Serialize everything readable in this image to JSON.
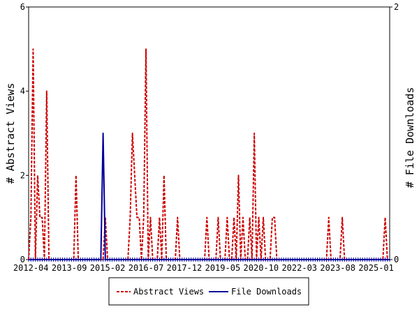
{
  "chart_data": {
    "type": "line",
    "ylabel_left": "# Abstract Views",
    "ylabel_right": "# File Downloads",
    "x_tick_labels": [
      "2012-04",
      "2013-09",
      "2015-02",
      "2016-07",
      "2017-12",
      "2019-05",
      "2020-10",
      "2022-03",
      "2023-08",
      "2025-01"
    ],
    "x_range": [
      "2012-03",
      "2025-07"
    ],
    "y_left": {
      "ylim": [
        0,
        6
      ],
      "ticks": [
        "0",
        "2",
        "4",
        "6"
      ]
    },
    "y_right": {
      "ylim": [
        0,
        2
      ],
      "ticks": [
        "0",
        "2"
      ]
    },
    "grid": false,
    "legend_position": "bottom-center",
    "series": [
      {
        "name": "Abstract Views",
        "axis": "left",
        "color": "#cc0000",
        "style": "dashed",
        "points": [
          [
            "2012-03",
            0
          ],
          [
            "2012-04",
            1
          ],
          [
            "2012-05",
            5
          ],
          [
            "2012-06",
            0
          ],
          [
            "2012-07",
            2
          ],
          [
            "2012-08",
            1
          ],
          [
            "2012-09",
            1
          ],
          [
            "2012-10",
            0
          ],
          [
            "2012-11",
            4
          ],
          [
            "2012-12",
            0
          ],
          [
            "2013-01",
            0
          ],
          [
            "2013-02",
            0
          ],
          [
            "2013-03",
            0
          ],
          [
            "2013-04",
            0
          ],
          [
            "2013-05",
            0
          ],
          [
            "2013-06",
            0
          ],
          [
            "2013-07",
            0
          ],
          [
            "2013-08",
            0
          ],
          [
            "2013-09",
            0
          ],
          [
            "2013-10",
            0
          ],
          [
            "2013-11",
            0
          ],
          [
            "2013-12",
            2
          ],
          [
            "2014-01",
            0
          ],
          [
            "2014-02",
            0
          ],
          [
            "2014-03",
            0
          ],
          [
            "2014-04",
            0
          ],
          [
            "2014-05",
            0
          ],
          [
            "2014-06",
            0
          ],
          [
            "2014-07",
            0
          ],
          [
            "2014-08",
            0
          ],
          [
            "2014-09",
            0
          ],
          [
            "2014-10",
            0
          ],
          [
            "2014-11",
            0
          ],
          [
            "2014-12",
            0
          ],
          [
            "2015-01",
            1
          ],
          [
            "2015-02",
            0
          ],
          [
            "2015-03",
            0
          ],
          [
            "2015-04",
            0
          ],
          [
            "2015-05",
            0
          ],
          [
            "2015-06",
            0
          ],
          [
            "2015-07",
            0
          ],
          [
            "2015-08",
            0
          ],
          [
            "2015-09",
            0
          ],
          [
            "2015-10",
            0
          ],
          [
            "2015-11",
            0
          ],
          [
            "2015-12",
            1
          ],
          [
            "2016-01",
            3
          ],
          [
            "2016-02",
            2
          ],
          [
            "2016-03",
            1
          ],
          [
            "2016-04",
            1
          ],
          [
            "2016-05",
            0
          ],
          [
            "2016-06",
            1
          ],
          [
            "2016-07",
            5
          ],
          [
            "2016-08",
            0
          ],
          [
            "2016-09",
            1
          ],
          [
            "2016-10",
            0
          ],
          [
            "2016-11",
            0
          ],
          [
            "2016-12",
            0
          ],
          [
            "2017-01",
            1
          ],
          [
            "2017-02",
            0
          ],
          [
            "2017-03",
            2
          ],
          [
            "2017-04",
            0
          ],
          [
            "2017-05",
            0
          ],
          [
            "2017-06",
            0
          ],
          [
            "2017-07",
            0
          ],
          [
            "2017-08",
            0
          ],
          [
            "2017-09",
            1
          ],
          [
            "2017-10",
            0
          ],
          [
            "2017-11",
            0
          ],
          [
            "2017-12",
            0
          ],
          [
            "2018-01",
            0
          ],
          [
            "2018-02",
            0
          ],
          [
            "2018-03",
            0
          ],
          [
            "2018-04",
            0
          ],
          [
            "2018-05",
            0
          ],
          [
            "2018-06",
            0
          ],
          [
            "2018-07",
            0
          ],
          [
            "2018-08",
            0
          ],
          [
            "2018-09",
            0
          ],
          [
            "2018-10",
            1
          ],
          [
            "2018-11",
            0
          ],
          [
            "2018-12",
            0
          ],
          [
            "2019-01",
            0
          ],
          [
            "2019-02",
            0
          ],
          [
            "2019-03",
            1
          ],
          [
            "2019-04",
            0
          ],
          [
            "2019-05",
            0
          ],
          [
            "2019-06",
            0
          ],
          [
            "2019-07",
            1
          ],
          [
            "2019-08",
            0
          ],
          [
            "2019-09",
            0
          ],
          [
            "2019-10",
            1
          ],
          [
            "2019-11",
            0
          ],
          [
            "2019-12",
            2
          ],
          [
            "2020-01",
            0
          ],
          [
            "2020-02",
            1
          ],
          [
            "2020-03",
            0
          ],
          [
            "2020-04",
            0
          ],
          [
            "2020-05",
            1
          ],
          [
            "2020-06",
            0
          ],
          [
            "2020-07",
            3
          ],
          [
            "2020-08",
            0
          ],
          [
            "2020-09",
            1
          ],
          [
            "2020-10",
            0
          ],
          [
            "2020-11",
            1
          ],
          [
            "2020-12",
            0
          ],
          [
            "2021-01",
            0
          ],
          [
            "2021-02",
            0
          ],
          [
            "2021-03",
            1
          ],
          [
            "2021-04",
            1
          ],
          [
            "2021-05",
            0
          ],
          [
            "2021-06",
            0
          ],
          [
            "2021-07",
            0
          ],
          [
            "2021-08",
            0
          ],
          [
            "2021-09",
            0
          ],
          [
            "2021-10",
            0
          ],
          [
            "2021-11",
            0
          ],
          [
            "2021-12",
            0
          ],
          [
            "2022-01",
            0
          ],
          [
            "2022-02",
            0
          ],
          [
            "2022-03",
            0
          ],
          [
            "2022-04",
            0
          ],
          [
            "2022-05",
            0
          ],
          [
            "2022-06",
            0
          ],
          [
            "2022-07",
            0
          ],
          [
            "2022-08",
            0
          ],
          [
            "2022-09",
            0
          ],
          [
            "2022-10",
            0
          ],
          [
            "2022-11",
            0
          ],
          [
            "2022-12",
            0
          ],
          [
            "2023-01",
            0
          ],
          [
            "2023-02",
            0
          ],
          [
            "2023-03",
            0
          ],
          [
            "2023-04",
            1
          ],
          [
            "2023-05",
            0
          ],
          [
            "2023-06",
            0
          ],
          [
            "2023-07",
            0
          ],
          [
            "2023-08",
            0
          ],
          [
            "2023-09",
            0
          ],
          [
            "2023-10",
            1
          ],
          [
            "2023-11",
            0
          ],
          [
            "2023-12",
            0
          ],
          [
            "2024-01",
            0
          ],
          [
            "2024-02",
            0
          ],
          [
            "2024-03",
            0
          ],
          [
            "2024-04",
            0
          ],
          [
            "2024-05",
            0
          ],
          [
            "2024-06",
            0
          ],
          [
            "2024-07",
            0
          ],
          [
            "2024-08",
            0
          ],
          [
            "2024-09",
            0
          ],
          [
            "2024-10",
            0
          ],
          [
            "2024-11",
            0
          ],
          [
            "2024-12",
            0
          ],
          [
            "2025-01",
            0
          ],
          [
            "2025-02",
            0
          ],
          [
            "2025-03",
            0
          ],
          [
            "2025-04",
            0
          ],
          [
            "2025-05",
            1
          ],
          [
            "2025-06",
            0
          ],
          [
            "2025-07",
            0
          ]
        ]
      },
      {
        "name": "File Downloads",
        "axis": "right",
        "color": "#000099",
        "style": "solid",
        "points": [
          [
            "2012-03",
            0
          ],
          [
            "2014-11",
            0
          ],
          [
            "2014-12",
            1
          ],
          [
            "2015-01",
            0
          ],
          [
            "2015-02",
            0
          ],
          [
            "2025-07",
            0
          ]
        ]
      }
    ]
  }
}
